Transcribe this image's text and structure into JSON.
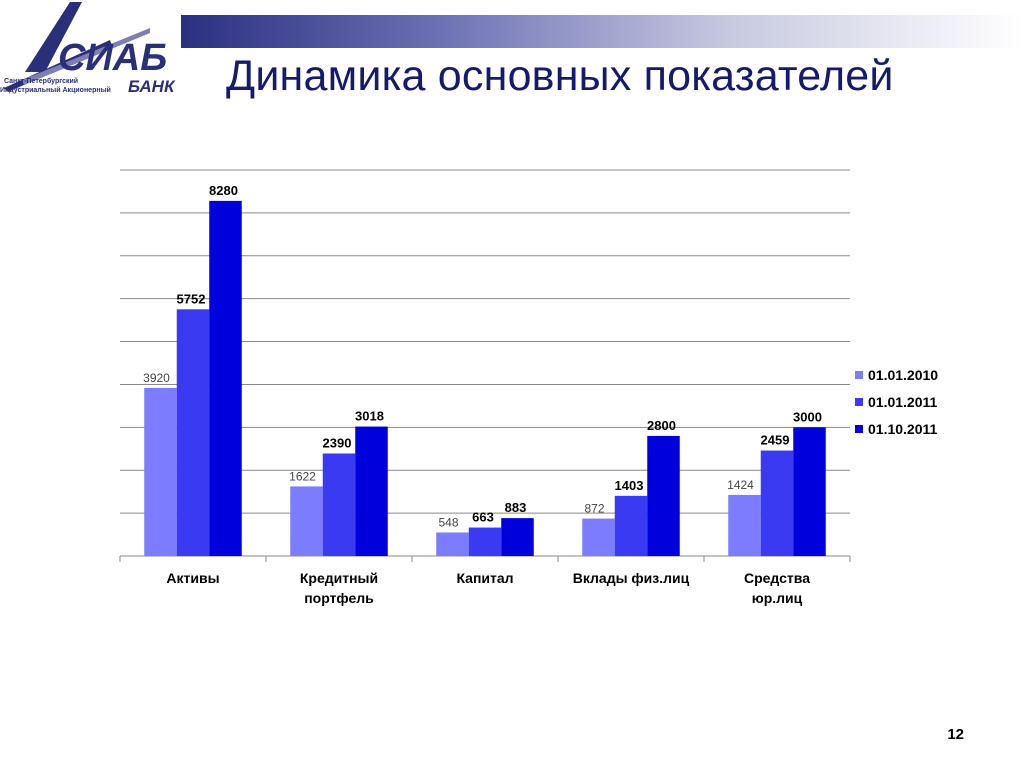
{
  "header": {
    "title": "Динамика основных показателей",
    "logo": {
      "line1": "Санкт-Петербургский",
      "line2": "Индустриальный Акционерный",
      "mark": "АСИАБ",
      "sub": "БАНК"
    }
  },
  "slide_number": "12",
  "colors": {
    "title": "#141a6e",
    "series": [
      "#7b7cff",
      "#3a3af2",
      "#0000dc"
    ]
  },
  "chart_data": {
    "type": "bar",
    "categories": [
      [
        "Активы"
      ],
      [
        "Кредитный",
        "портфель"
      ],
      [
        "Капитал"
      ],
      [
        "Вклады физ.лиц"
      ],
      [
        "Средства",
        "юр.лиц"
      ]
    ],
    "series": [
      {
        "name": "01.01.2010",
        "values": [
          3920,
          1622,
          548,
          872,
          1424
        ]
      },
      {
        "name": "01.01.2011",
        "values": [
          5752,
          2390,
          663,
          1403,
          2459
        ]
      },
      {
        "name": "01.10.2011",
        "values": [
          8280,
          3018,
          883,
          2800,
          3000
        ]
      }
    ],
    "label_bold": [
      false,
      true,
      true
    ],
    "ylim": [
      0,
      9000
    ],
    "grid": true,
    "legend_position": "right",
    "title": "",
    "xlabel": "",
    "ylabel": ""
  }
}
